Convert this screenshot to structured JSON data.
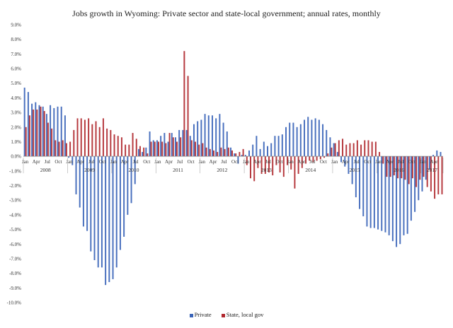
{
  "chart_data": {
    "type": "bar",
    "title": "Jobs growth in Wyoming: Private sector and state-local government; annual rates, monthly",
    "ylim": [
      -10,
      9
    ],
    "y_ticks": [
      "9.0%",
      "8.0%",
      "7.0%",
      "6.0%",
      "5.0%",
      "4.0%",
      "3.0%",
      "2.0%",
      "1.0%",
      "0.0%",
      "-1.0%",
      "-2.0%",
      "-3.0%",
      "-4.0%",
      "-5.0%",
      "-6.0%",
      "-7.0%",
      "-8.0%",
      "-9.0%",
      "-10.0%"
    ],
    "y_tick_values": [
      9,
      8,
      7,
      6,
      5,
      4,
      3,
      2,
      1,
      0,
      -1,
      -2,
      -3,
      -4,
      -5,
      -6,
      -7,
      -8,
      -9,
      -10
    ],
    "month_labels": [
      "Jan",
      "Apr",
      "Jul",
      "Oct"
    ],
    "years": [
      "2008",
      "2009",
      "2010",
      "2011",
      "2012",
      "2013",
      "2014",
      "2015",
      "2016",
      "2017"
    ],
    "last_period": "Oct 2017",
    "colors": {
      "private": "#3a64b8",
      "state": "#b0282e"
    },
    "series": [
      {
        "name": "Private",
        "values": [
          4.7,
          4.4,
          3.6,
          3.7,
          3.5,
          3.4,
          2.9,
          3.5,
          3.3,
          3.4,
          3.4,
          2.8,
          -0.1,
          -0.6,
          -2.6,
          -3.5,
          -4.8,
          -5.1,
          -6.5,
          -7.1,
          -7.6,
          -7.6,
          -8.8,
          -8.6,
          -8.4,
          -7.6,
          -6.4,
          -5.5,
          -4.0,
          -3.2,
          -1.9,
          0.5,
          0.3,
          0.6,
          1.7,
          1.1,
          1.1,
          1.4,
          1.6,
          1.0,
          1.6,
          1.3,
          1.8,
          1.8,
          1.8,
          1.4,
          2.2,
          2.4,
          2.5,
          2.9,
          2.8,
          2.8,
          2.6,
          2.9,
          2.3,
          1.7,
          0.6,
          0.2,
          -0.5,
          0.1,
          0.1,
          0.4,
          0.8,
          1.4,
          0.5,
          1.0,
          0.7,
          0.9,
          1.4,
          1.4,
          1.5,
          2.0,
          2.3,
          2.3,
          2.0,
          2.2,
          2.5,
          2.7,
          2.5,
          2.6,
          2.5,
          2.2,
          1.8,
          1.3,
          0.9,
          0.3,
          -0.4,
          -0.7,
          -1.2,
          -1.9,
          -2.8,
          -3.6,
          -4.1,
          -4.8,
          -4.9,
          -4.9,
          -5.0,
          -5.1,
          -5.2,
          -5.4,
          -5.8,
          -6.2,
          -6.0,
          -5.4,
          -5.3,
          -4.4,
          -3.8,
          -3.0,
          -2.4,
          -1.6,
          -0.9,
          0.1,
          0.4,
          0.3
        ]
      },
      {
        "name": "State, local gov",
        "values": [
          2.0,
          2.8,
          3.2,
          3.2,
          3.4,
          3.1,
          2.3,
          1.9,
          1.1,
          1.0,
          1.1,
          0.9,
          1.0,
          1.8,
          2.6,
          2.6,
          2.5,
          2.6,
          2.2,
          2.4,
          2.0,
          2.6,
          1.9,
          1.8,
          1.5,
          1.4,
          1.3,
          0.8,
          0.8,
          1.6,
          1.2,
          0.7,
          0.6,
          0.2,
          1.0,
          1.0,
          1.0,
          1.0,
          0.9,
          1.6,
          1.3,
          1.0,
          1.3,
          7.2,
          5.5,
          1.1,
          1.0,
          0.8,
          0.9,
          0.6,
          0.5,
          0.4,
          0.3,
          0.6,
          0.5,
          0.6,
          0.4,
          0.2,
          0.3,
          0.5,
          -0.6,
          -1.5,
          -1.7,
          -0.8,
          -1.2,
          -1.2,
          -1.1,
          -1.3,
          -0.6,
          -1.1,
          -1.4,
          -0.6,
          -0.9,
          -2.2,
          -1.2,
          -0.8,
          -0.5,
          -0.3,
          -0.4,
          -0.3,
          -0.2,
          -0.1,
          0.2,
          0.6,
          0.9,
          1.1,
          1.2,
          0.8,
          0.9,
          0.9,
          1.1,
          0.8,
          1.1,
          1.1,
          1.0,
          1.0,
          0.3,
          -0.5,
          -1.4,
          -1.4,
          -1.3,
          -1.5,
          -1.5,
          -1.6,
          -1.9,
          -1.5,
          -2.1,
          -1.6,
          -1.4,
          -2.1,
          -2.4,
          -2.9,
          -2.6,
          -2.6
        ]
      }
    ]
  },
  "legend": {
    "private": "Private",
    "state": "State, local gov"
  }
}
